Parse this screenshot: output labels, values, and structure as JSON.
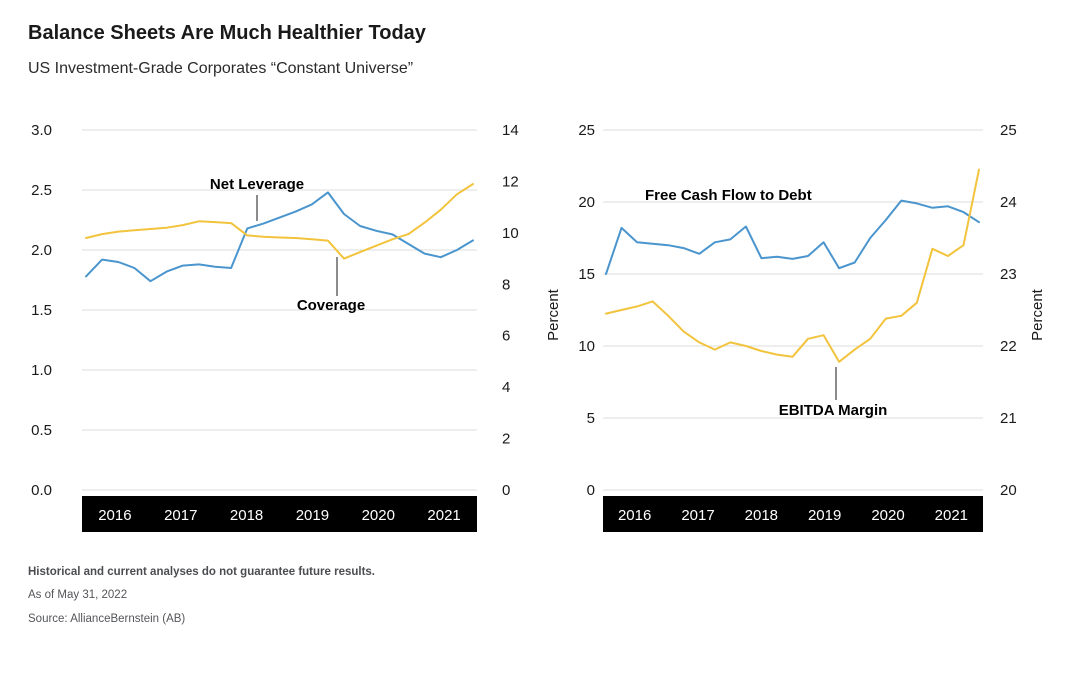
{
  "header": {
    "title": "Balance Sheets Are Much Healthier Today",
    "subtitle": "US Investment-Grade Corporates “Constant Universe”"
  },
  "footer": {
    "disclaimer": "Historical and current analyses do not guarantee future results.",
    "as_of": "As of May 31, 2022",
    "source": "Source: AllianceBernstein (AB)"
  },
  "colors": {
    "blue": "#4A95CE",
    "yellow": "#F2C33C",
    "grid": "#DCDCDC",
    "bar": "#000000",
    "year_text": "#FFFFFF",
    "text": "#1A1A1A"
  },
  "chart_data": [
    {
      "type": "line",
      "name": "net-leverage-and-coverage",
      "x_tick_labels": [
        "2016",
        "2017",
        "2018",
        "2019",
        "2020",
        "2021"
      ],
      "grid": true,
      "legend_position": "annotated-inline",
      "left_axis": {
        "min": 0,
        "max": 3,
        "tick_labels": [
          "3.0",
          "2.5",
          "2.0",
          "1.5",
          "1.0",
          "0.5",
          "0.0"
        ]
      },
      "right_axis": {
        "min": 0,
        "max": 14,
        "tick_labels": [
          "14",
          "12",
          "10",
          "8",
          "6",
          "4",
          "2",
          "0"
        ]
      },
      "series": [
        {
          "name": "Net Leverage",
          "axis": "left",
          "color": "blue",
          "values": [
            1.78,
            1.92,
            1.9,
            1.85,
            1.74,
            1.82,
            1.87,
            1.88,
            1.86,
            1.85,
            2.18,
            2.22,
            2.27,
            2.32,
            2.38,
            2.48,
            2.3,
            2.2,
            2.16,
            2.13,
            2.05,
            1.97,
            1.94,
            2.0,
            2.08
          ]
        },
        {
          "name": "Coverage",
          "axis": "right",
          "color": "yellow",
          "values": [
            9.8,
            9.95,
            10.05,
            10.1,
            10.15,
            10.2,
            10.3,
            10.45,
            10.42,
            10.38,
            9.9,
            9.85,
            9.82,
            9.8,
            9.75,
            9.7,
            9.0,
            9.25,
            9.5,
            9.75,
            9.95,
            10.4,
            10.9,
            11.5,
            11.9
          ]
        }
      ],
      "annotations": [
        {
          "label": "Net Leverage"
        },
        {
          "label": "Coverage"
        }
      ]
    },
    {
      "type": "line",
      "name": "free-cash-flow-and-ebitda-margin",
      "x_tick_labels": [
        "2016",
        "2017",
        "2018",
        "2019",
        "2020",
        "2021"
      ],
      "grid": true,
      "legend_position": "annotated-inline",
      "left_axis": {
        "min": 0,
        "max": 25,
        "tick_labels": [
          "25",
          "20",
          "15",
          "10",
          "5",
          "0"
        ],
        "title": "Percent"
      },
      "right_axis": {
        "min": 20,
        "max": 25,
        "tick_labels": [
          "25",
          "24",
          "23",
          "22",
          "21",
          "20"
        ],
        "title": "Percent"
      },
      "series": [
        {
          "name": "Free Cash Flow to Debt",
          "axis": "left",
          "color": "blue",
          "values": [
            15.0,
            18.2,
            17.2,
            17.1,
            17.0,
            16.8,
            16.4,
            17.2,
            17.4,
            18.3,
            16.1,
            16.2,
            16.05,
            16.25,
            17.2,
            15.4,
            15.8,
            17.5,
            18.75,
            20.1,
            19.9,
            19.6,
            19.7,
            19.3,
            18.6
          ]
        },
        {
          "name": "EBITDA Margin",
          "axis": "right",
          "color": "yellow",
          "values": [
            22.45,
            22.5,
            22.55,
            22.62,
            22.42,
            22.2,
            22.05,
            21.95,
            22.05,
            22.0,
            21.93,
            21.88,
            21.85,
            22.1,
            22.15,
            21.78,
            21.95,
            22.1,
            22.38,
            22.42,
            22.6,
            23.35,
            23.25,
            23.4,
            24.45
          ]
        }
      ],
      "annotations": [
        {
          "label": "Free Cash Flow to Debt"
        },
        {
          "label": "EBITDA Margin"
        }
      ]
    }
  ]
}
